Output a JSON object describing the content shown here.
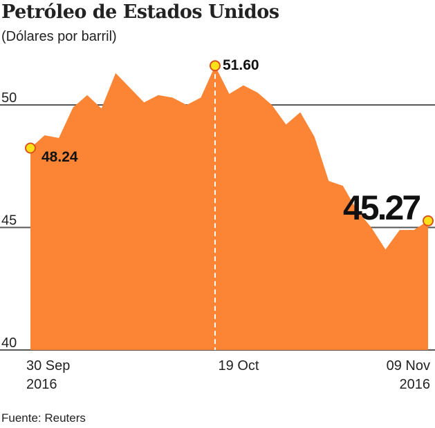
{
  "chart_data": {
    "type": "area",
    "title": "Petróleo de Estados Unidos",
    "subtitle": "(Dólares por barril)",
    "source": "Fuente: Reuters",
    "ylim": [
      40,
      52
    ],
    "y_ticks": [
      "40",
      "45",
      "50"
    ],
    "y_tick_values": [
      40,
      45,
      50
    ],
    "x_labels": [
      {
        "line1": "30 Sep",
        "line2": "2016",
        "index": 0
      },
      {
        "line1": "19 Oct",
        "line2": "",
        "index": 13
      },
      {
        "line1": "09 Nov",
        "line2": "2016",
        "index": 28
      }
    ],
    "values": [
      48.24,
      48.76,
      48.65,
      49.9,
      50.4,
      49.86,
      51.3,
      50.7,
      50.1,
      50.4,
      50.3,
      50.0,
      50.3,
      51.6,
      50.45,
      50.8,
      50.5,
      50.0,
      49.2,
      49.7,
      48.7,
      46.9,
      46.7,
      45.7,
      45.0,
      44.1,
      44.9,
      44.9,
      45.27
    ],
    "annotations": [
      {
        "label": "48.24",
        "index": 0
      },
      {
        "label": "51.60",
        "index": 13
      },
      {
        "label": "45.27",
        "index": 28
      }
    ],
    "colors": {
      "fill": "#fb8535",
      "marker": "#ffe11a",
      "marker_stroke": "#d9531e",
      "grid": "#555555"
    }
  }
}
